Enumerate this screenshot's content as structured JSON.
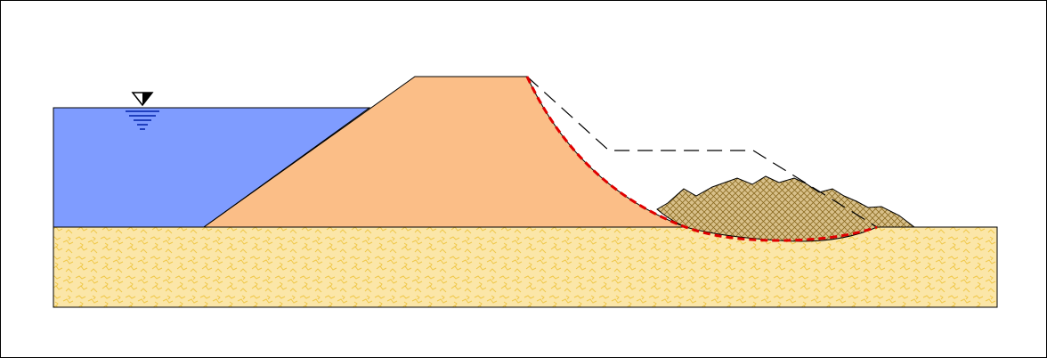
{
  "diagram": {
    "kind": "slope-stability-cross-section",
    "water_table_symbol": "inverted-triangle-icon",
    "colors": {
      "water": "#7f9cff",
      "embankment": "#fbbe87",
      "foundation_fill": "#fbe6a8",
      "foundation_texture": "#f0c84a",
      "slid_mass_fill": "#d8c08a",
      "slid_mass_texture": "#8a6a20",
      "slip_surface": "#e00000",
      "original_profile": "#000000",
      "water_symbol_lines": "#1f3fbf"
    },
    "slip_surface_style": "dashed",
    "original_profile_style": "dashed"
  }
}
